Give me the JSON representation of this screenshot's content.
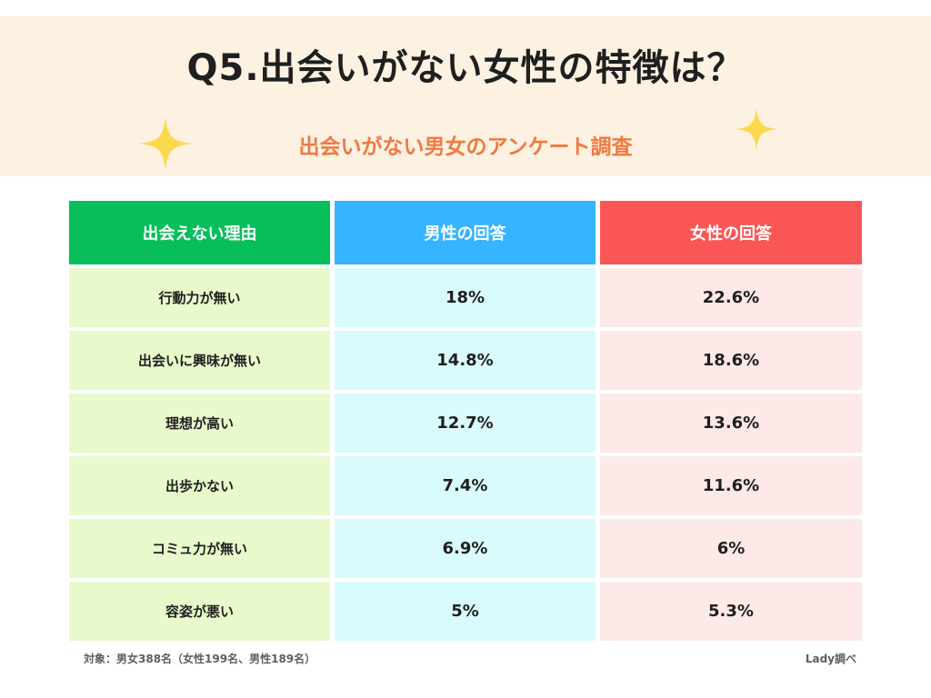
{
  "header": {
    "title": "Q5.出会いがない女性の特徴は？",
    "subtitle": "出会いがない男女のアンケート調査"
  },
  "colors": {
    "header_bg": "#fdf1e2",
    "subtitle": "#ef7a42",
    "sparkle": "#fcd94c",
    "col_reason_header": "#06bf5a",
    "col_male_header": "#36b4ff",
    "col_female_header": "#fb5656",
    "col_reason_cell": "#e8f9cb",
    "col_male_cell": "#d9fbfd",
    "col_female_cell": "#fde9e8"
  },
  "chart_data": {
    "type": "table",
    "title": "Q5.出会いがない女性の特徴は？",
    "subtitle": "出会いがない男女のアンケート調査",
    "columns": [
      "出会えない理由",
      "男性の回答",
      "女性の回答"
    ],
    "rows": [
      [
        "行動力が無い",
        "18%",
        "22.6%"
      ],
      [
        "出会いに興味が無い",
        "14.8%",
        "18.6%"
      ],
      [
        "理想が高い",
        "12.7%",
        "13.6%"
      ],
      [
        "出歩かない",
        "7.4%",
        "11.6%"
      ],
      [
        "コミュ力が無い",
        "6.9%",
        "6%"
      ],
      [
        "容姿が悪い",
        "5%",
        "5.3%"
      ]
    ]
  },
  "footer": {
    "note": "対象：男女388名（女性199名、男性189名）",
    "source": "Lady調べ"
  },
  "icons": {
    "left": "sparkle-icon",
    "right": "sparkle-icon"
  }
}
